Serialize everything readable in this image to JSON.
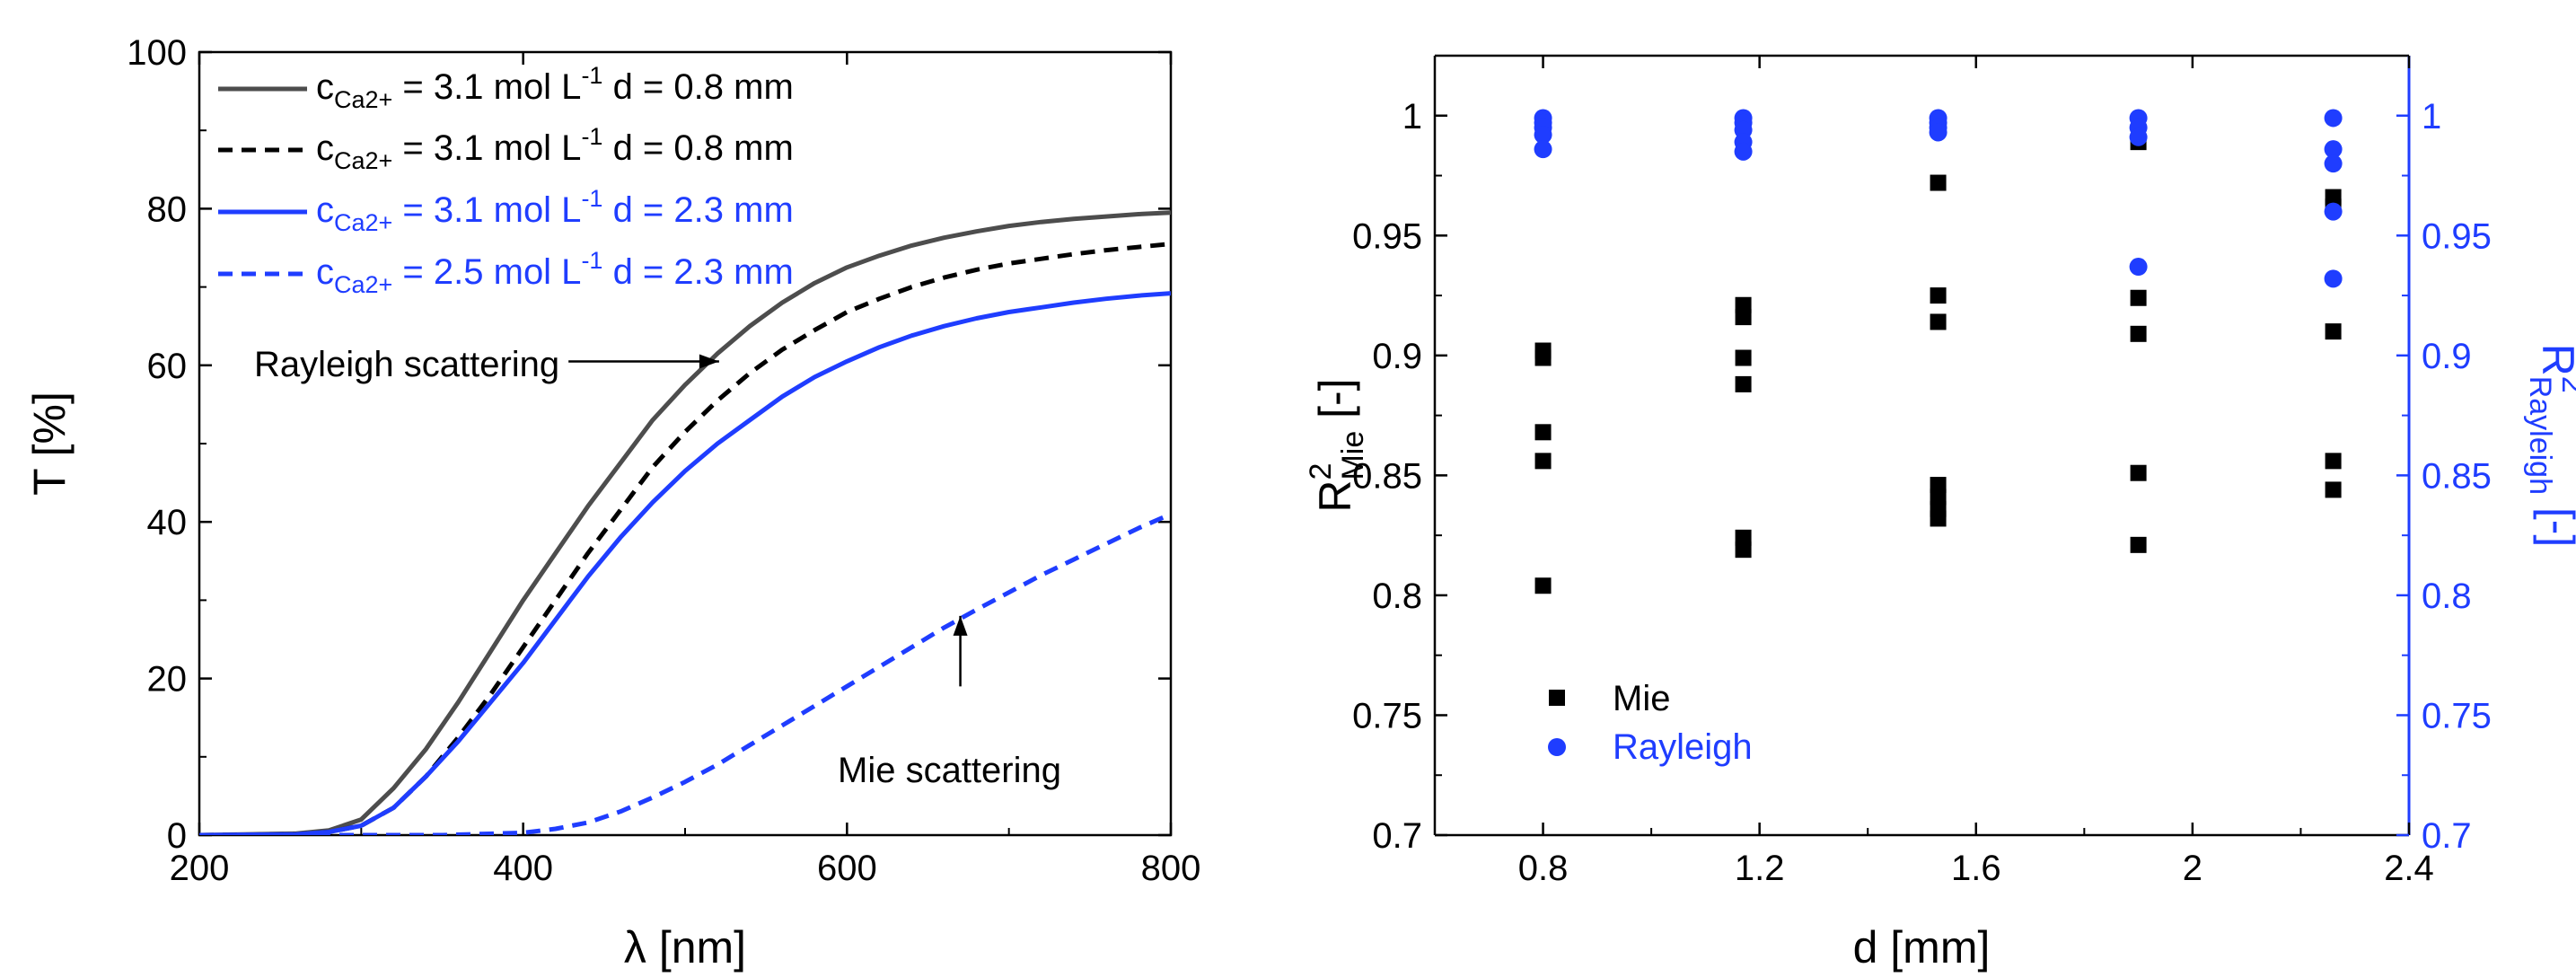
{
  "colors": {
    "black": "#000000",
    "gray": "#4d4d4d",
    "blue": "#1f3dff"
  },
  "chart_data": [
    {
      "type": "line",
      "xlabel": "λ [nm]",
      "ylabel": "T [%]",
      "xlim": [
        200,
        800
      ],
      "ylim": [
        0,
        100
      ],
      "xticks": [
        200,
        400,
        600,
        800
      ],
      "yticks": [
        0,
        20,
        40,
        60,
        80,
        100
      ],
      "legend_placement": "top-left",
      "series": [
        {
          "legend": {
            "pre": "c",
            "sub": "Ca2+",
            "mid": " = 3.1 mol L",
            "sup": "-1",
            "post": " d = 0.8 mm"
          },
          "color": "#4d4d4d",
          "style": "solid",
          "x": [
            200,
            260,
            280,
            300,
            320,
            340,
            360,
            380,
            400,
            420,
            440,
            460,
            480,
            500,
            520,
            540,
            560,
            580,
            600,
            620,
            640,
            660,
            680,
            700,
            720,
            740,
            760,
            780,
            800
          ],
          "y": [
            0,
            0.2,
            0.6,
            2,
            6,
            11,
            17,
            23.5,
            30,
            36,
            42,
            47.5,
            53,
            57.5,
            61.5,
            65,
            68,
            70.5,
            72.5,
            74,
            75.3,
            76.3,
            77.1,
            77.8,
            78.3,
            78.7,
            79,
            79.3,
            79.5
          ]
        },
        {
          "legend": {
            "pre": "c",
            "sub": "Ca2+",
            "mid": " = 3.1 mol L",
            "sup": "-1",
            "post": " d = 0.8 mm"
          },
          "color": "#000000",
          "style": "dash",
          "x": [
            200,
            260,
            280,
            300,
            320,
            340,
            360,
            380,
            400,
            420,
            440,
            460,
            480,
            500,
            520,
            540,
            560,
            580,
            600,
            620,
            640,
            660,
            680,
            700,
            720,
            740,
            760,
            780,
            800
          ],
          "y": [
            0,
            0.1,
            0.4,
            1.2,
            3.5,
            7.5,
            12.5,
            18,
            24,
            30,
            36,
            41.5,
            47,
            51.5,
            55.5,
            59,
            62,
            64.5,
            66.8,
            68.5,
            70,
            71.2,
            72.2,
            73,
            73.6,
            74.2,
            74.7,
            75.1,
            75.5
          ]
        },
        {
          "legend": {
            "pre": "c",
            "sub": "Ca2+",
            "mid": " = 3.1 mol L",
            "sup": "-1",
            "post": " d = 2.3 mm"
          },
          "color": "#1f3dff",
          "style": "solid",
          "x": [
            200,
            260,
            280,
            300,
            320,
            340,
            360,
            380,
            400,
            420,
            440,
            460,
            480,
            500,
            520,
            540,
            560,
            580,
            600,
            620,
            640,
            660,
            680,
            700,
            720,
            740,
            760,
            780,
            800
          ],
          "y": [
            0,
            0.1,
            0.4,
            1.2,
            3.5,
            7.5,
            12,
            17,
            22,
            27.5,
            33,
            38,
            42.5,
            46.5,
            50,
            53,
            56,
            58.5,
            60.5,
            62.3,
            63.8,
            65,
            66,
            66.8,
            67.4,
            68,
            68.5,
            68.9,
            69.2
          ]
        },
        {
          "legend": {
            "pre": "c",
            "sub": "Ca2+",
            "mid": " = 2.5 mol L",
            "sup": "-1",
            "post": " d = 2.3 mm"
          },
          "color": "#1f3dff",
          "style": "dash",
          "x": [
            200,
            300,
            350,
            400,
            420,
            440,
            460,
            480,
            500,
            520,
            540,
            560,
            580,
            600,
            620,
            640,
            660,
            680,
            700,
            720,
            740,
            760,
            780,
            800
          ],
          "y": [
            0,
            0,
            0,
            0.3,
            0.8,
            1.6,
            3,
            4.8,
            6.8,
            9,
            11.5,
            14,
            16.5,
            19,
            21.5,
            24,
            26.5,
            28.8,
            31,
            33.2,
            35.2,
            37.2,
            39.2,
            41
          ]
        }
      ],
      "annotations": [
        {
          "text": "Rayleigh scattering",
          "arrow_from": [
            428,
            60.5
          ],
          "arrow_to": [
            521,
            60.5
          ]
        },
        {
          "text": "Mie scattering",
          "arrow_from": [
            670,
            19
          ],
          "arrow_to": [
            670,
            28
          ]
        }
      ]
    },
    {
      "type": "scatter",
      "xlabel": "d [mm]",
      "ylabel": {
        "base": "R",
        "sup": "2",
        "sub": "Mie",
        "post": " [-]"
      },
      "y2label": {
        "base": "R",
        "sup": "2",
        "sub": "Rayleigh",
        "post": " [-]"
      },
      "xlim": [
        0.6,
        2.4
      ],
      "ylim": [
        0.7,
        1.025
      ],
      "y2lim": [
        0.7,
        1.025
      ],
      "xticks": [
        "0.8",
        "1.2",
        "1.6",
        "2",
        "2.4"
      ],
      "yticks": [
        "0.7",
        "0.75",
        "0.8",
        "0.85",
        "0.9",
        "0.95",
        "1"
      ],
      "legend_placement": "bottom-left",
      "series": [
        {
          "name": "Mie",
          "marker": "square",
          "color": "#000000",
          "axis": "left",
          "points": [
            [
              0.8,
              0.902
            ],
            [
              0.8,
              0.899
            ],
            [
              0.8,
              0.868
            ],
            [
              0.8,
              0.856
            ],
            [
              0.8,
              0.804
            ],
            [
              1.17,
              0.921
            ],
            [
              1.17,
              0.916
            ],
            [
              1.17,
              0.899
            ],
            [
              1.17,
              0.888
            ],
            [
              1.17,
              0.824
            ],
            [
              1.17,
              0.819
            ],
            [
              1.53,
              0.972
            ],
            [
              1.53,
              0.925
            ],
            [
              1.53,
              0.914
            ],
            [
              1.53,
              0.846
            ],
            [
              1.53,
              0.841
            ],
            [
              1.53,
              0.836
            ],
            [
              1.53,
              0.832
            ],
            [
              1.9,
              0.989
            ],
            [
              1.9,
              0.924
            ],
            [
              1.9,
              0.909
            ],
            [
              1.9,
              0.851
            ],
            [
              1.9,
              0.821
            ],
            [
              2.26,
              0.966
            ],
            [
              2.26,
              0.962
            ],
            [
              2.26,
              0.91
            ],
            [
              2.26,
              0.856
            ],
            [
              2.26,
              0.844
            ]
          ]
        },
        {
          "name": "Rayleigh",
          "marker": "circle",
          "color": "#1f3dff",
          "axis": "right",
          "points": [
            [
              0.8,
              0.999
            ],
            [
              0.8,
              0.997
            ],
            [
              0.8,
              0.995
            ],
            [
              0.8,
              0.992
            ],
            [
              0.8,
              0.986
            ],
            [
              1.17,
              0.999
            ],
            [
              1.17,
              0.997
            ],
            [
              1.17,
              0.994
            ],
            [
              1.17,
              0.989
            ],
            [
              1.17,
              0.985
            ],
            [
              1.53,
              0.999
            ],
            [
              1.53,
              0.997
            ],
            [
              1.53,
              0.995
            ],
            [
              1.53,
              0.993
            ],
            [
              1.9,
              0.999
            ],
            [
              1.9,
              0.995
            ],
            [
              1.9,
              0.991
            ],
            [
              1.9,
              0.937
            ],
            [
              2.26,
              0.999
            ],
            [
              2.26,
              0.986
            ],
            [
              2.26,
              0.98
            ],
            [
              2.26,
              0.96
            ],
            [
              2.26,
              0.932
            ]
          ]
        }
      ]
    }
  ]
}
